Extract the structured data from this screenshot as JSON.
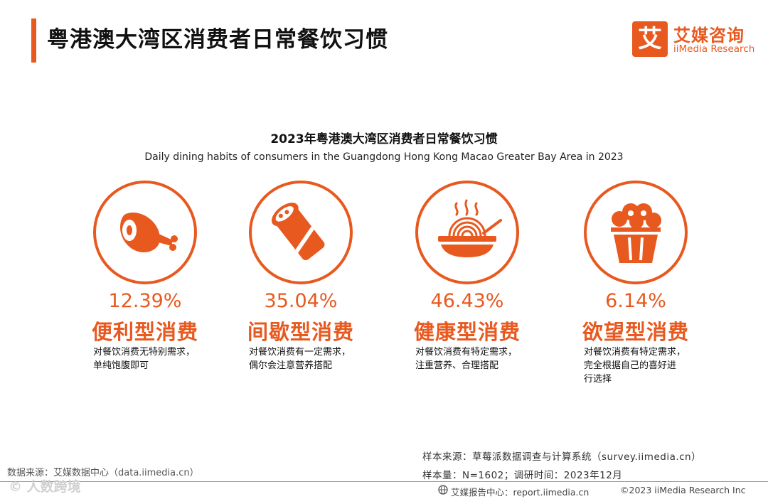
{
  "header": {
    "title": "粤港澳大湾区消费者日常餐饮习惯",
    "logo_mark": "艾",
    "logo_cn": "艾媒咨询",
    "logo_en": "iiMedia Research"
  },
  "chart_data": {
    "type": "table",
    "title": "2023年粤港澳大湾区消费者日常餐饮习惯",
    "subtitle": "Daily dining habits of consumers in the Guangdong Hong Kong Macao Greater Bay Area in 2023",
    "items": [
      {
        "icon": "ham-leg-icon",
        "percent": "12.39%",
        "value": 12.39,
        "type": "便利型消费",
        "desc_1": "对餐饮消费无特别需求，",
        "desc_2": "单纯饱腹即可",
        "desc_3": ""
      },
      {
        "icon": "burrito-icon",
        "percent": "35.04%",
        "value": 35.04,
        "type": "间歇型消费",
        "desc_1": "对餐饮消费有一定需求，",
        "desc_2": "偶尔会注意营养搭配",
        "desc_3": ""
      },
      {
        "icon": "noodle-bowl-icon",
        "percent": "46.43%",
        "value": 46.43,
        "type": "健康型消费",
        "desc_1": "对餐饮消费有特定需求，",
        "desc_2": "注重营养、合理搭配",
        "desc_3": ""
      },
      {
        "icon": "popcorn-bucket-icon",
        "percent": "6.14%",
        "value": 6.14,
        "type": "欲望型消费",
        "desc_1": "对餐饮消费有特定需求，",
        "desc_2": "完全根据自己的喜好进",
        "desc_3": "行选择"
      }
    ]
  },
  "footer": {
    "data_source": "数据来源：艾媒数据中心（data.iimedia.cn）",
    "sample_source": "样本来源：草莓派数据调查与计算系统（survey.iimedia.cn）",
    "sample_size": "样本量：N=1602；调研时间：2023年12月",
    "report_center": "艾媒报告中心：report.iimedia.cn",
    "copyright": "©2023  iiMedia Research Inc",
    "watermark": "© 人数跨境"
  },
  "colors": {
    "accent": "#e8591f"
  }
}
